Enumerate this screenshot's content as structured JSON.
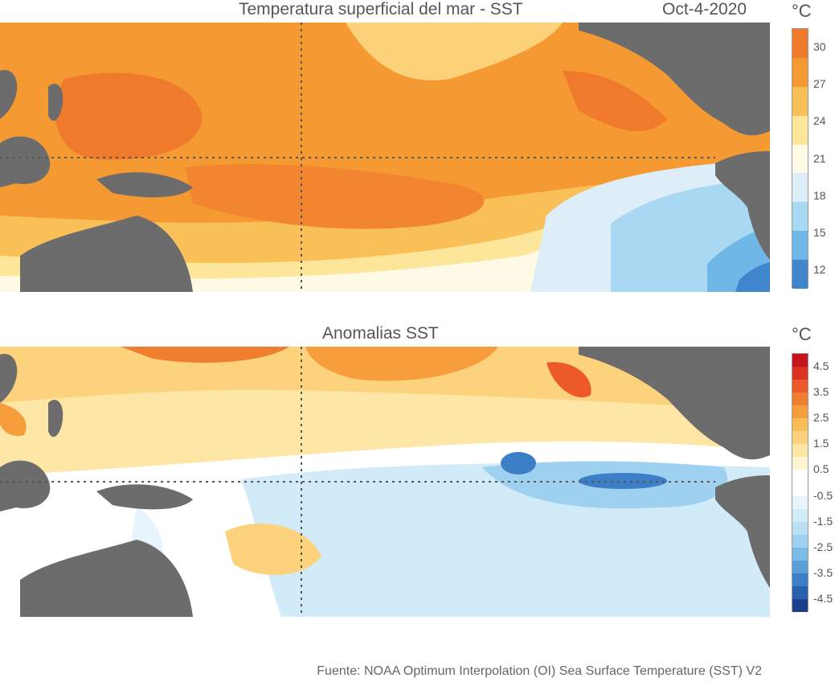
{
  "sst_panel": {
    "title": "Temperatura superficial del mar - SST",
    "date": "Oct-4-2020",
    "unit": "°C",
    "colorbar_ticks": [
      "30",
      "27",
      "24",
      "21",
      "18",
      "15",
      "12"
    ],
    "colorbar_colors": [
      "#f07a2b",
      "#f59a33",
      "#f9c057",
      "#fde59a",
      "#fefae6",
      "#ddeef8",
      "#a9d8f2",
      "#6fb7e6",
      "#3f86cc"
    ]
  },
  "anomaly_panel": {
    "title": "Anomalias SST",
    "unit": "°C",
    "colorbar_ticks": [
      "4.5",
      "3.5",
      "2.5",
      "1.5",
      "0.5",
      "-0.5",
      "-1.5",
      "-2.5",
      "-3.5",
      "-4.5"
    ],
    "colorbar_colors": [
      "#c5141c",
      "#dd3222",
      "#ec5a2a",
      "#f07e2f",
      "#f59e3b",
      "#f9bd58",
      "#fcd27d",
      "#fee6a6",
      "#fff4d2",
      "#ffffff",
      "#ffffff",
      "#e8f4fb",
      "#d2ebf8",
      "#bbe0f4",
      "#9ed0ef",
      "#7cbbe6",
      "#5a9fd8",
      "#3c7fc6",
      "#2a5fae",
      "#1c3f8c"
    ]
  },
  "source": "Fuente: NOAA Optimum Interpolation (OI) Sea Surface Temperature (SST) V2",
  "colors": {
    "land": "#6c6c6c",
    "grid": "#555555"
  }
}
